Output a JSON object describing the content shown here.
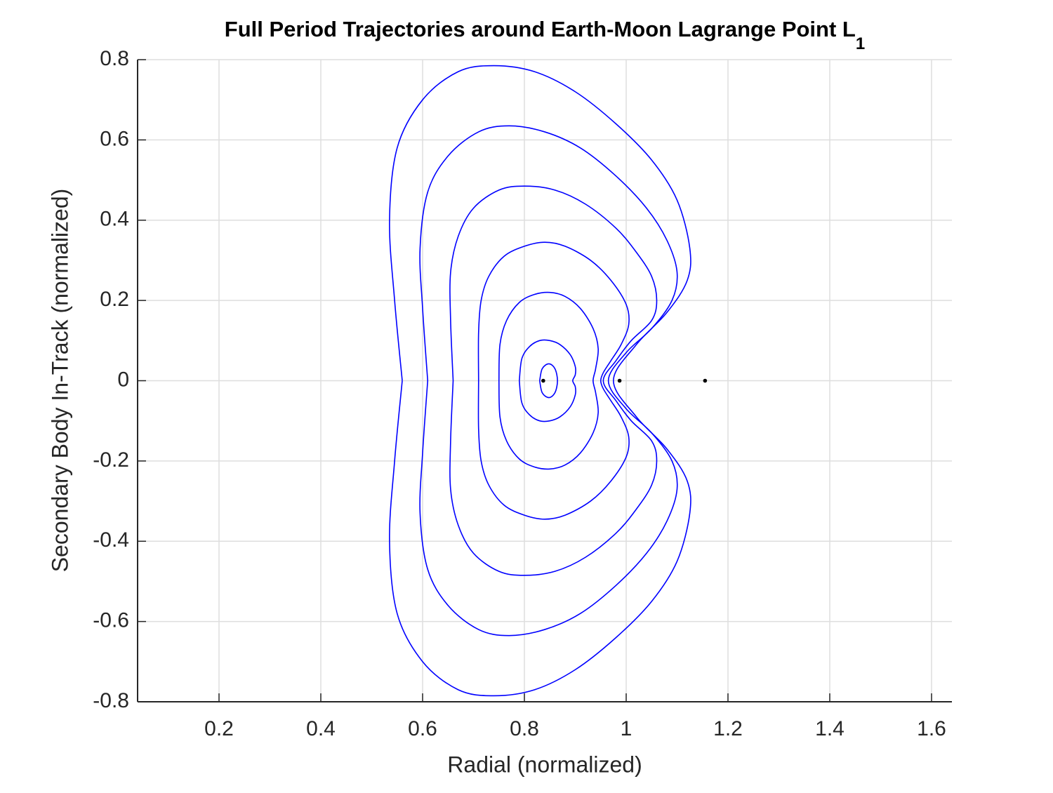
{
  "chart_data": {
    "type": "line",
    "title": "Full Period Trajectories around Earth-Moon Lagrange Point L",
    "title_subscript": "1",
    "xlabel": "Radial (normalized)",
    "ylabel": "Secondary Body In-Track (normalized)",
    "xlim": [
      0.04,
      1.64
    ],
    "ylim": [
      -0.8,
      0.8
    ],
    "xticks": [
      0.2,
      0.4,
      0.6,
      0.8,
      1,
      1.2,
      1.4,
      1.6
    ],
    "yticks": [
      -0.8,
      -0.6,
      -0.4,
      -0.2,
      0,
      0.2,
      0.4,
      0.6,
      0.8
    ],
    "grid": true,
    "series": [
      {
        "color": "#0000ff",
        "x": [
          0.56,
          0.545,
          0.535,
          0.55,
          0.6,
          0.67,
          0.74,
          0.82,
          0.9,
          0.98,
          1.05,
          1.1,
          1.125,
          1.12,
          1.08,
          1.02,
          0.975,
          1.02,
          1.08,
          1.12,
          1.125,
          1.1,
          1.05,
          0.98,
          0.9,
          0.82,
          0.74,
          0.67,
          0.6,
          0.55,
          0.535,
          0.545,
          0.56
        ],
        "y": [
          0,
          0.2,
          0.4,
          0.58,
          0.7,
          0.77,
          0.785,
          0.77,
          0.72,
          0.64,
          0.55,
          0.45,
          0.33,
          0.25,
          0.17,
          0.09,
          0,
          -0.09,
          -0.17,
          -0.25,
          -0.33,
          -0.45,
          -0.55,
          -0.64,
          -0.72,
          -0.77,
          -0.785,
          -0.77,
          -0.7,
          -0.58,
          -0.4,
          -0.2,
          0
        ]
      },
      {
        "color": "#0000ff",
        "x": [
          0.61,
          0.6,
          0.595,
          0.61,
          0.65,
          0.71,
          0.77,
          0.84,
          0.91,
          0.98,
          1.04,
          1.08,
          1.1,
          1.09,
          1.05,
          1,
          0.965,
          1,
          1.05,
          1.09,
          1.1,
          1.08,
          1.04,
          0.98,
          0.91,
          0.84,
          0.77,
          0.71,
          0.65,
          0.61,
          0.595,
          0.6,
          0.61
        ],
        "y": [
          0,
          0.18,
          0.33,
          0.47,
          0.56,
          0.62,
          0.635,
          0.62,
          0.58,
          0.51,
          0.43,
          0.35,
          0.27,
          0.2,
          0.13,
          0.07,
          0,
          -0.07,
          -0.13,
          -0.2,
          -0.27,
          -0.35,
          -0.43,
          -0.51,
          -0.58,
          -0.62,
          -0.635,
          -0.62,
          -0.56,
          -0.47,
          -0.33,
          -0.18,
          0
        ]
      },
      {
        "color": "#0000ff",
        "x": [
          0.66,
          0.655,
          0.655,
          0.67,
          0.7,
          0.75,
          0.8,
          0.86,
          0.92,
          0.98,
          1.02,
          1.05,
          1.06,
          1.05,
          1.01,
          0.98,
          0.955,
          0.98,
          1.01,
          1.05,
          1.06,
          1.05,
          1.02,
          0.98,
          0.92,
          0.86,
          0.8,
          0.75,
          0.7,
          0.67,
          0.655,
          0.655,
          0.66
        ],
        "y": [
          0,
          0.15,
          0.27,
          0.36,
          0.43,
          0.475,
          0.485,
          0.475,
          0.44,
          0.38,
          0.32,
          0.26,
          0.2,
          0.15,
          0.1,
          0.05,
          0,
          -0.05,
          -0.1,
          -0.15,
          -0.2,
          -0.26,
          -0.32,
          -0.38,
          -0.44,
          -0.475,
          -0.485,
          -0.475,
          -0.43,
          -0.36,
          -0.27,
          -0.15,
          0
        ]
      },
      {
        "color": "#0000ff",
        "x": [
          0.71,
          0.71,
          0.715,
          0.73,
          0.76,
          0.8,
          0.84,
          0.88,
          0.93,
          0.97,
          1,
          1.005,
          0.99,
          0.97,
          0.955,
          0.95,
          0.955,
          0.97,
          0.99,
          1.005,
          1,
          0.97,
          0.93,
          0.88,
          0.84,
          0.8,
          0.76,
          0.73,
          0.715,
          0.71,
          0.71
        ],
        "y": [
          0,
          0.12,
          0.2,
          0.26,
          0.31,
          0.335,
          0.345,
          0.335,
          0.3,
          0.25,
          0.19,
          0.14,
          0.09,
          0.05,
          0.02,
          0,
          -0.02,
          -0.05,
          -0.09,
          -0.14,
          -0.19,
          -0.25,
          -0.3,
          -0.335,
          -0.345,
          -0.335,
          -0.31,
          -0.26,
          -0.2,
          -0.12,
          0
        ]
      },
      {
        "color": "#0000ff",
        "x": [
          0.75,
          0.752,
          0.765,
          0.79,
          0.82,
          0.85,
          0.88,
          0.91,
          0.935,
          0.945,
          0.94,
          0.935,
          0.94,
          0.945,
          0.935,
          0.91,
          0.88,
          0.85,
          0.82,
          0.79,
          0.765,
          0.752,
          0.75
        ],
        "y": [
          0,
          0.09,
          0.15,
          0.195,
          0.215,
          0.22,
          0.21,
          0.18,
          0.13,
          0.08,
          0.03,
          0,
          -0.03,
          -0.08,
          -0.13,
          -0.18,
          -0.21,
          -0.22,
          -0.215,
          -0.195,
          -0.15,
          -0.09,
          0
        ]
      },
      {
        "color": "#0000ff",
        "x": [
          0.79,
          0.795,
          0.81,
          0.83,
          0.85,
          0.87,
          0.89,
          0.9,
          0.9,
          0.895,
          0.9,
          0.9,
          0.89,
          0.87,
          0.85,
          0.83,
          0.81,
          0.795,
          0.79
        ],
        "y": [
          0,
          0.055,
          0.085,
          0.1,
          0.1,
          0.09,
          0.065,
          0.035,
          0.015,
          0,
          -0.015,
          -0.035,
          -0.065,
          -0.09,
          -0.1,
          -0.1,
          -0.085,
          -0.055,
          0
        ]
      },
      {
        "color": "#0000ff",
        "x": [
          0.83,
          0.835,
          0.848,
          0.86,
          0.865,
          0.86,
          0.848,
          0.835,
          0.83
        ],
        "y": [
          0,
          0.03,
          0.042,
          0.03,
          0,
          -0.03,
          -0.042,
          -0.03,
          0
        ]
      }
    ],
    "points": {
      "color": "#000000",
      "x": [
        0.837,
        0.987,
        1.155
      ],
      "y": [
        0,
        0,
        0
      ]
    }
  }
}
